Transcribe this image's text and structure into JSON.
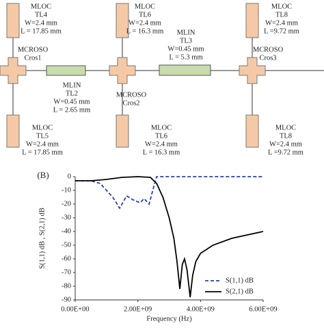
{
  "diagram": {
    "components": [
      {
        "lines": [
          "MLOC",
          "TL4",
          "W=2.4 mm",
          "L = 17.85 mm"
        ]
      },
      {
        "lines": [
          "MCROSO",
          "Cros1"
        ]
      },
      {
        "lines": [
          "MLIN",
          "TL2",
          "W=0.45 mm",
          "L = 2.65 mm"
        ]
      },
      {
        "lines": [
          "MLOC",
          "TL5",
          "W=2.4 mm",
          "L = 17.85 mm"
        ]
      },
      {
        "lines": [
          "MLOC",
          "TL6",
          "W=2.4 mm",
          "L = 16.3 mm"
        ]
      },
      {
        "lines": [
          "MLIN",
          "TL3",
          "W=0.45 mm",
          "L = 5.3 mm"
        ]
      },
      {
        "lines": [
          "MCROSO",
          "Cros2"
        ]
      },
      {
        "lines": [
          "MLOC",
          "TL6",
          "W=2.4 mm",
          "L = 16.3 mm"
        ]
      },
      {
        "lines": [
          "MLOC",
          "TL8",
          "W=2.4 mm",
          "L =9.72 mm"
        ]
      },
      {
        "lines": [
          "MCROSO",
          "Cros3"
        ]
      },
      {
        "lines": [
          "MLOC",
          "TL8",
          "W=2.4 mm",
          "L =9.72 mm"
        ]
      }
    ]
  },
  "chart_data": {
    "type": "line",
    "panel_label": "(B)",
    "x_label": "Frequency (Hz)",
    "y_label": "S(1,1) dB , S(2,1) dB",
    "xlim": [
      0,
      6000000000
    ],
    "ylim": [
      -90,
      0
    ],
    "xticks": [
      {
        "value": 0,
        "label": "0.00E+00"
      },
      {
        "value": 2000000000,
        "label": "2.00E+09"
      },
      {
        "value": 4000000000,
        "label": "4.00E+09"
      },
      {
        "value": 6000000000,
        "label": "6.00E+09"
      }
    ],
    "yticks": [
      0,
      -10,
      -20,
      -30,
      -40,
      -50,
      -60,
      -70,
      -80,
      -90
    ],
    "grid": false,
    "legend": "lower right",
    "series": [
      {
        "name": "S(1,1) dB",
        "color": "#1f3fbf",
        "dash": true,
        "x": [
          0,
          500000000,
          800000000,
          1000000000,
          1200000000,
          1420000000,
          1640000000,
          1850000000,
          2070000000,
          2200000000,
          2360000000,
          2500000000,
          2600000000,
          3000000000,
          4000000000,
          5000000000,
          6000000000
        ],
        "values": [
          -3,
          -3,
          -5,
          -10,
          -15,
          -23,
          -14,
          -17,
          -19,
          -16,
          -20,
          -8,
          0,
          0,
          0,
          0,
          0
        ]
      },
      {
        "name": "S(2,1) dB",
        "color": "#000000",
        "dash": false,
        "x": [
          0,
          500000000,
          1000000000,
          1500000000,
          2000000000,
          2400000000,
          2600000000,
          2800000000,
          3000000000,
          3150000000,
          3250000000,
          3340000000,
          3420000000,
          3490000000,
          3570000000,
          3670000000,
          3750000000,
          3850000000,
          4000000000,
          4400000000,
          5000000000,
          6000000000
        ],
        "values": [
          -3,
          -3,
          -2,
          -0.5,
          0,
          -0.5,
          -5,
          -15,
          -30,
          -45,
          -62,
          -82,
          -64,
          -60,
          -68,
          -88,
          -72,
          -62,
          -56,
          -50,
          -45,
          -40
        ]
      }
    ]
  }
}
